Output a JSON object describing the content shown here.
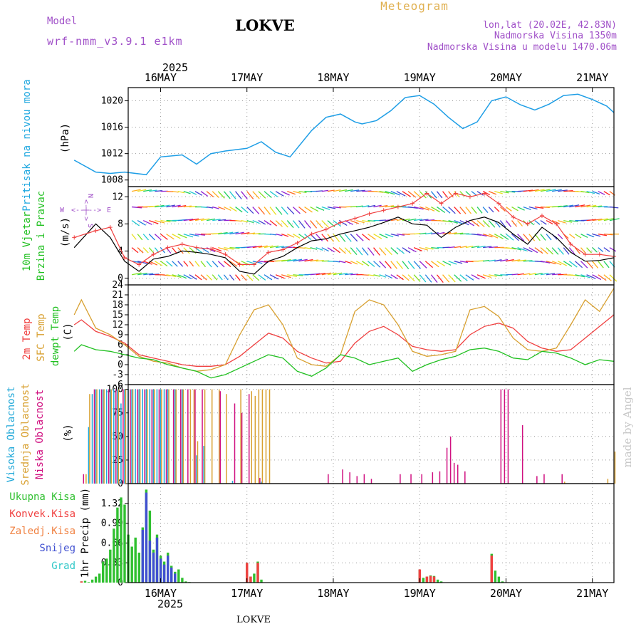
{
  "header": {
    "model_label": "Model",
    "model_name": "wrf-nmm_v3.9.1 e1km",
    "location": "LOKVE",
    "product": "Meteogram",
    "coords": "lon,lat (20.02E, 42.83N)",
    "elevation": "Nadmorska Visina 1350m",
    "model_elevation": "Nadmorska Visina u modelu 1470.06m",
    "year": "2025",
    "watermark": "made by Angel"
  },
  "time_axis": {
    "labels": [
      "16MAY",
      "17MAY",
      "18MAY",
      "19MAY",
      "20MAY",
      "21MAY"
    ],
    "start_hour": 15,
    "end_hour": 150
  },
  "colors": {
    "pressure": "#1e9ee6",
    "wind_speed": "#000000",
    "gust": "#f04040",
    "temp_2m": "#f04040",
    "temp_sfc": "#d8a030",
    "dewpoint": "#20c020",
    "cloud_high": "#20a8d8",
    "cloud_mid": "#d8a030",
    "cloud_low": "#d01080",
    "precip_total": "#30c030",
    "precip_conv": "#f04040",
    "precip_frz": "#f08040",
    "precip_snow": "#4050d0",
    "precip_grad": "#30c8c8"
  },
  "panels": {
    "pressure": {
      "label1": "Pritisak na nivou mora",
      "unit": "(hPa)"
    },
    "wind": {
      "label1": "10m Vjetar",
      "label2": "Brzina i Pravac",
      "unit": "(m/s)",
      "compass_n": "N",
      "compass_s": "S",
      "compass_w": "W",
      "compass_e": "E"
    },
    "temp": {
      "label1": "2m Temp",
      "label2": "SFC Temp",
      "label3": "dewpt Temp",
      "unit": "(C)"
    },
    "cloud": {
      "label1": "Visoka Oblacnost",
      "label2": "Srednja Oblacnost",
      "label3": "Niska Oblacnost",
      "unit": "(%)"
    },
    "precip": {
      "label1": "Ukupna Kisa",
      "label2": "Konvek.Kisa",
      "label3": "Zaledj.Kisa",
      "label4": "Snijeg",
      "label5": "Grad",
      "unit": "1hr Precip (mm)"
    }
  },
  "chart_data": [
    {
      "type": "line",
      "title": "Pritisak na nivou mora",
      "ylabel": "(hPa)",
      "ylim": [
        1007,
        1022
      ],
      "yticks": [
        1008,
        1012,
        1016,
        1020
      ],
      "grid": true,
      "x_hours": [
        0,
        6,
        10,
        14,
        20,
        24,
        30,
        34,
        38,
        42,
        45,
        48,
        52,
        56,
        60,
        66,
        70,
        74,
        78,
        80,
        84,
        88,
        92,
        96,
        100,
        104,
        108,
        112,
        116,
        120,
        124,
        128,
        132,
        136,
        140,
        144,
        148,
        150
      ],
      "series": [
        {
          "values": [
            1011,
            1009.2,
            1009,
            1009.2,
            1008.8,
            1011.5,
            1011.8,
            1010.4,
            1012,
            1012.4,
            1012.6,
            1012.8,
            1013.8,
            1012.2,
            1011.5,
            1015.5,
            1017.5,
            1018,
            1016.8,
            1016.5,
            1017,
            1018.5,
            1020.5,
            1020.8,
            1019.5,
            1017.5,
            1015.8,
            1016.8,
            1020,
            1020.6,
            1019.4,
            1018.6,
            1019.5,
            1020.8,
            1021,
            1020.2,
            1019.2,
            1018.2
          ]
        }
      ]
    },
    {
      "type": "line",
      "title": "10m Vjetar Brzina i Pravac",
      "ylabel": "(m/s)",
      "ylim": [
        -1,
        13.5
      ],
      "yticks": [
        0,
        4,
        8,
        12
      ],
      "grid": true,
      "x_hours": [
        0,
        6,
        10,
        14,
        18,
        22,
        26,
        30,
        34,
        38,
        42,
        46,
        50,
        54,
        58,
        62,
        66,
        70,
        74,
        78,
        82,
        86,
        90,
        94,
        98,
        102,
        106,
        110,
        114,
        118,
        122,
        126,
        130,
        134,
        138,
        142,
        146,
        150
      ],
      "series": [
        {
          "values": [
            4.5,
            8,
            6,
            2.5,
            1,
            2.8,
            3.2,
            4,
            3.8,
            3.5,
            3,
            1,
            0.6,
            2.5,
            3.2,
            4.5,
            5.5,
            5.8,
            6.5,
            7,
            7.5,
            8.2,
            9,
            8,
            7.8,
            6,
            7.5,
            8.5,
            9,
            8.2,
            6.5,
            5,
            7.5,
            6,
            3.8,
            2.5,
            2.6,
            3
          ]
        },
        {
          "values": [
            6,
            7,
            7.5,
            3,
            2,
            3.5,
            4.5,
            5,
            4.5,
            4.3,
            3.5,
            2,
            2,
            3.8,
            4.2,
            5.2,
            6.5,
            7.2,
            8.2,
            8.8,
            9.5,
            10,
            10.5,
            11,
            12.5,
            11,
            12.5,
            12,
            12.5,
            11,
            9,
            8,
            9.2,
            8,
            5,
            3.5,
            3.5,
            3.2
          ]
        }
      ]
    },
    {
      "type": "line",
      "title": "2m Temp / SFC Temp / dewpt Temp",
      "ylabel": "(C)",
      "ylim": [
        -6,
        24
      ],
      "yticks": [
        -6,
        -3,
        0,
        3,
        6,
        9,
        12,
        15,
        18,
        21,
        24
      ],
      "grid": true,
      "x_hours": [
        0,
        2,
        6,
        10,
        14,
        18,
        22,
        26,
        30,
        34,
        38,
        42,
        46,
        50,
        54,
        58,
        62,
        66,
        70,
        74,
        78,
        82,
        86,
        90,
        94,
        98,
        102,
        106,
        110,
        114,
        118,
        122,
        126,
        130,
        134,
        138,
        142,
        146,
        150
      ],
      "series": [
        {
          "name": "2m Temp",
          "values": [
            12,
            13.5,
            10,
            8.5,
            6.5,
            3,
            2,
            1,
            0,
            -0.5,
            -0.5,
            0,
            2.5,
            6,
            9.5,
            8,
            4,
            2,
            0.5,
            1,
            6.5,
            10,
            11.5,
            9,
            5.5,
            4.5,
            4,
            4.5,
            9,
            11.5,
            12.5,
            11,
            7,
            5,
            4,
            4.5,
            8,
            11.5,
            15
          ]
        },
        {
          "name": "SFC Temp",
          "values": [
            15,
            19.5,
            11,
            9,
            6,
            2.5,
            1,
            0.5,
            -1,
            -2,
            -1.5,
            0,
            9,
            16.5,
            18,
            12,
            2,
            0,
            -0.5,
            3,
            16,
            19.5,
            18,
            12,
            4,
            2.5,
            3,
            4,
            16.5,
            17.5,
            14.5,
            8,
            4.5,
            4,
            5,
            12,
            19.5,
            16,
            23
          ]
        },
        {
          "name": "dewpt Temp",
          "values": [
            4,
            6,
            4.5,
            4,
            3,
            2,
            1.5,
            0,
            -1,
            -2,
            -4,
            -3,
            -1,
            1,
            3,
            2,
            -2,
            -3.5,
            -1,
            3,
            2,
            0,
            1,
            2,
            -2,
            0,
            1.5,
            2.5,
            4.5,
            5,
            4,
            2,
            1.5,
            4,
            3.5,
            2,
            0,
            1.5,
            1
          ]
        }
      ]
    },
    {
      "type": "bar",
      "title": "Visoka / Srednja / Niska Oblacnost",
      "ylabel": "(%)",
      "ylim": [
        0,
        105
      ],
      "yticks": [
        0,
        25,
        50,
        75,
        100
      ],
      "grid": true,
      "series": [
        {
          "name": "Visoka Oblacnost",
          "x_hours": [
            4,
            5,
            6,
            7,
            8,
            9,
            10,
            11,
            12,
            13,
            14,
            15,
            16,
            17,
            18,
            19,
            20,
            21,
            22,
            23,
            24,
            25,
            26,
            28,
            30,
            34,
            36,
            44,
            52
          ],
          "values": [
            60,
            95,
            100,
            100,
            100,
            100,
            100,
            100,
            100,
            85,
            100,
            100,
            100,
            100,
            100,
            100,
            100,
            100,
            100,
            100,
            100,
            100,
            100,
            100,
            100,
            30,
            40,
            3,
            2
          ]
        },
        {
          "name": "Srednja Oblacnost",
          "x_hours": [
            3,
            4,
            6,
            8,
            10,
            12,
            14,
            16,
            18,
            20,
            22,
            24,
            26,
            28,
            30,
            32,
            33,
            34,
            36,
            38,
            40,
            42,
            46,
            49,
            50,
            51,
            52,
            53,
            54,
            136,
            148,
            150
          ],
          "values": [
            10,
            95,
            100,
            100,
            100,
            100,
            100,
            100,
            100,
            100,
            100,
            100,
            100,
            100,
            100,
            100,
            100,
            45,
            100,
            100,
            100,
            95,
            100,
            98,
            93,
            100,
            100,
            100,
            100,
            2,
            5,
            34
          ]
        },
        {
          "name": "Niska Oblacnost",
          "x_hours": [
            2,
            5,
            7,
            9,
            11,
            13,
            15,
            17,
            19,
            21,
            23,
            25,
            27,
            29,
            31,
            33,
            35,
            40,
            44,
            46,
            48,
            51,
            70,
            74,
            76,
            78,
            80,
            82,
            90,
            93,
            96,
            99,
            101,
            103,
            104,
            105,
            106,
            108,
            118,
            119,
            120,
            124,
            128,
            130,
            135
          ],
          "values": [
            10,
            100,
            100,
            100,
            100,
            100,
            100,
            100,
            100,
            100,
            100,
            100,
            100,
            100,
            100,
            100,
            100,
            98,
            85,
            75,
            95,
            6,
            10,
            15,
            12,
            8,
            10,
            5,
            10,
            10,
            10,
            12,
            13,
            38,
            50,
            22,
            20,
            13,
            100,
            100,
            100,
            62,
            8,
            10,
            10
          ]
        }
      ]
    },
    {
      "type": "bar",
      "title": "1hr Precip",
      "ylabel": "1hr Precip (mm)",
      "ylim": [
        0,
        1.65
      ],
      "yticks": [
        0,
        0.33,
        0.66,
        0.99,
        1.32
      ],
      "grid": true,
      "series": [
        {
          "name": "Ukupna Kisa",
          "x_hours": [
            2,
            3,
            4,
            5,
            6,
            7,
            8,
            9,
            10,
            11,
            12,
            13,
            14,
            15,
            16,
            17,
            18,
            19,
            20,
            21,
            22,
            23,
            24,
            25,
            26,
            27,
            28,
            29,
            30,
            31,
            32,
            48,
            49,
            50,
            51,
            52,
            96,
            97,
            98,
            99,
            100,
            101,
            102,
            116,
            117,
            118,
            119
          ],
          "values": [
            0.02,
            0.03,
            0.01,
            0.05,
            0.1,
            0.15,
            0.35,
            0.4,
            0.55,
            0.9,
            1.25,
            1.42,
            1.3,
            0.8,
            0.6,
            0.75,
            0.5,
            0.92,
            1.55,
            1.2,
            0.55,
            0.8,
            0.45,
            0.35,
            0.5,
            0.28,
            0.18,
            0.22,
            0.08,
            0.02,
            0.01,
            0.33,
            0.1,
            0.15,
            0.35,
            0.05,
            0.22,
            0.08,
            0.1,
            0.12,
            0.11,
            0.05,
            0.02,
            0.48,
            0.2,
            0.1,
            0.02
          ]
        },
        {
          "name": "Konvek.Kisa",
          "x_hours": [
            2,
            48,
            49,
            51,
            96,
            98,
            99,
            100,
            116
          ],
          "values": [
            0.02,
            0.33,
            0.1,
            0.33,
            0.22,
            0.1,
            0.11,
            0.1,
            0.45
          ]
        },
        {
          "name": "Snijeg",
          "x_hours": [
            19,
            20,
            21,
            22,
            23,
            24,
            25,
            26,
            27,
            28
          ],
          "values": [
            0.88,
            1.5,
            0.7,
            0.5,
            0.75,
            0.4,
            0.3,
            0.45,
            0.25,
            0.15
          ]
        }
      ]
    }
  ]
}
